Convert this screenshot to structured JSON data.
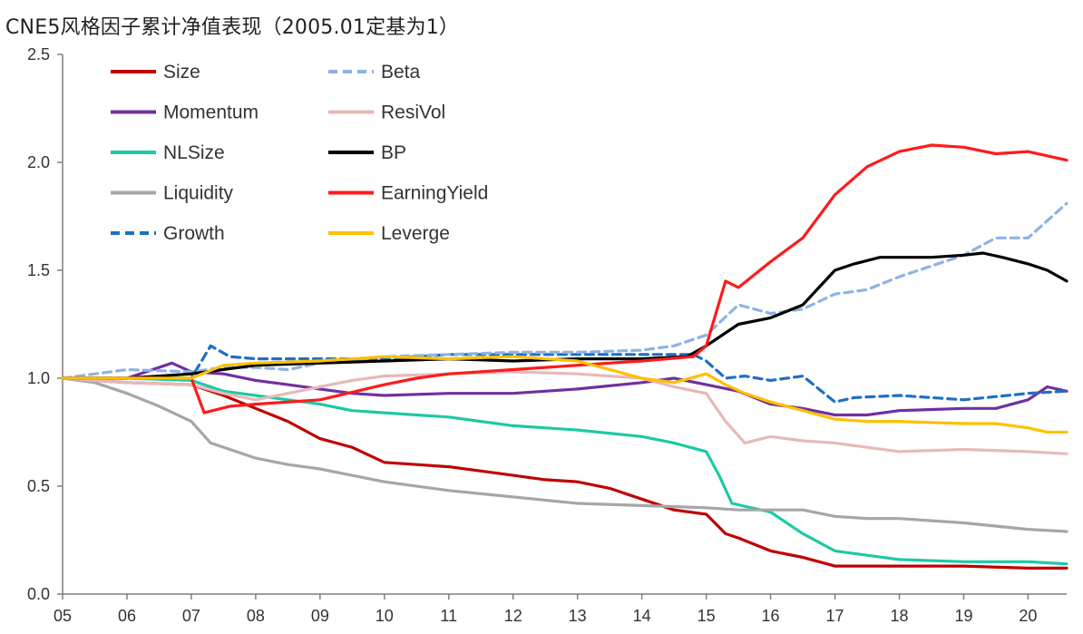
{
  "chart_data": {
    "type": "line",
    "title": "CNE5风格因子累计净值表现（2005.01定基为1）",
    "xlabel": "",
    "ylabel": "",
    "xlim": [
      2005,
      2020.6
    ],
    "ylim": [
      0,
      2.5
    ],
    "yticks": [
      0.0,
      0.5,
      1.0,
      1.5,
      2.0,
      2.5
    ],
    "ytick_labels": [
      "0.0",
      "0.5",
      "1.0",
      "1.5",
      "2.0",
      "2.5"
    ],
    "xticks": [
      2005,
      2006,
      2007,
      2008,
      2009,
      2010,
      2011,
      2012,
      2013,
      2014,
      2015,
      2016,
      2017,
      2018,
      2019,
      2020
    ],
    "xtick_labels": [
      "05",
      "06",
      "07",
      "08",
      "09",
      "10",
      "11",
      "12",
      "13",
      "14",
      "15",
      "16",
      "17",
      "18",
      "19",
      "20"
    ],
    "grid": false,
    "legend_position": "top-left",
    "series": [
      {
        "name": "Size",
        "color": "#c00000",
        "dash": false,
        "x": [
          2005,
          2006,
          2007,
          2007.5,
          2008,
          2008.5,
          2009,
          2009.5,
          2010,
          2010.5,
          2011,
          2011.5,
          2012,
          2012.5,
          2013,
          2013.5,
          2014,
          2014.5,
          2015,
          2015.3,
          2015.5,
          2016,
          2016.5,
          2017,
          2017.5,
          2018,
          2019,
          2020,
          2020.6
        ],
        "y": [
          1.0,
          0.98,
          0.97,
          0.92,
          0.86,
          0.8,
          0.72,
          0.68,
          0.61,
          0.6,
          0.59,
          0.57,
          0.55,
          0.53,
          0.52,
          0.49,
          0.44,
          0.39,
          0.37,
          0.28,
          0.26,
          0.2,
          0.17,
          0.13,
          0.13,
          0.13,
          0.13,
          0.12,
          0.12
        ]
      },
      {
        "name": "Momentum",
        "color": "#7030a0",
        "dash": false,
        "x": [
          2005,
          2006,
          2006.7,
          2007,
          2007.5,
          2008,
          2008.5,
          2009,
          2009.5,
          2010,
          2011,
          2012,
          2013,
          2014,
          2014.5,
          2015,
          2015.5,
          2016,
          2016.5,
          2017,
          2017.5,
          2018,
          2019,
          2019.5,
          2020,
          2020.3,
          2020.6
        ],
        "y": [
          1.0,
          1.0,
          1.07,
          1.03,
          1.02,
          0.99,
          0.97,
          0.95,
          0.93,
          0.92,
          0.93,
          0.93,
          0.95,
          0.98,
          1.0,
          0.97,
          0.94,
          0.88,
          0.86,
          0.83,
          0.83,
          0.85,
          0.86,
          0.86,
          0.9,
          0.96,
          0.94
        ]
      },
      {
        "name": "NLSize",
        "color": "#1dc9a4",
        "dash": false,
        "x": [
          2005,
          2006,
          2007,
          2007.5,
          2008,
          2008.5,
          2009,
          2009.5,
          2010,
          2010.5,
          2011,
          2012,
          2013,
          2014,
          2014.5,
          2015,
          2015.2,
          2015.4,
          2016,
          2016.5,
          2017,
          2018,
          2019,
          2020,
          2020.6
        ],
        "y": [
          1.0,
          1.0,
          0.99,
          0.94,
          0.92,
          0.9,
          0.88,
          0.85,
          0.84,
          0.83,
          0.82,
          0.78,
          0.76,
          0.73,
          0.7,
          0.66,
          0.55,
          0.42,
          0.38,
          0.28,
          0.2,
          0.16,
          0.15,
          0.15,
          0.14
        ]
      },
      {
        "name": "Liquidity",
        "color": "#a6a6a6",
        "dash": false,
        "x": [
          2005,
          2005.5,
          2006,
          2006.5,
          2007,
          2007.3,
          2007.6,
          2008,
          2008.5,
          2009,
          2010,
          2011,
          2012,
          2013,
          2014,
          2015,
          2015.5,
          2016,
          2016.5,
          2017,
          2017.5,
          2018,
          2019,
          2020,
          2020.6
        ],
        "y": [
          1.0,
          0.98,
          0.93,
          0.87,
          0.8,
          0.7,
          0.67,
          0.63,
          0.6,
          0.58,
          0.52,
          0.48,
          0.45,
          0.42,
          0.41,
          0.4,
          0.39,
          0.39,
          0.39,
          0.36,
          0.35,
          0.35,
          0.33,
          0.3,
          0.29
        ]
      },
      {
        "name": "Growth",
        "color": "#1f6fc5",
        "dash": true,
        "x": [
          2005,
          2006,
          2007,
          2007.3,
          2007.6,
          2008,
          2009,
          2010,
          2011,
          2012,
          2013,
          2014,
          2014.8,
          2015,
          2015.3,
          2015.6,
          2016,
          2016.5,
          2017,
          2017.3,
          2018,
          2019,
          2020,
          2020.6
        ],
        "y": [
          1.0,
          1.0,
          1.0,
          1.15,
          1.1,
          1.09,
          1.09,
          1.09,
          1.11,
          1.11,
          1.11,
          1.11,
          1.11,
          1.08,
          1.0,
          1.01,
          0.99,
          1.01,
          0.89,
          0.91,
          0.92,
          0.9,
          0.93,
          0.94
        ]
      },
      {
        "name": "Beta",
        "color": "#8db3e2",
        "dash": true,
        "x": [
          2005,
          2006,
          2007,
          2007.5,
          2008,
          2008.5,
          2009,
          2010,
          2011,
          2012,
          2013,
          2014,
          2014.5,
          2015,
          2015.5,
          2016,
          2016.5,
          2017,
          2017.5,
          2018,
          2018.5,
          2019,
          2019.5,
          2020,
          2020.6
        ],
        "y": [
          1.0,
          1.04,
          1.03,
          1.05,
          1.05,
          1.04,
          1.07,
          1.1,
          1.11,
          1.12,
          1.12,
          1.13,
          1.15,
          1.2,
          1.34,
          1.3,
          1.32,
          1.39,
          1.41,
          1.47,
          1.52,
          1.57,
          1.65,
          1.65,
          1.81
        ]
      },
      {
        "name": "ResiVol",
        "color": "#e6b9b8",
        "dash": false,
        "x": [
          2005,
          2006,
          2007,
          2007.5,
          2008,
          2008.5,
          2009,
          2009.5,
          2010,
          2011,
          2012,
          2013,
          2014,
          2014.5,
          2015,
          2015.3,
          2015.6,
          2016,
          2016.5,
          2017,
          2017.5,
          2018,
          2019,
          2020,
          2020.6
        ],
        "y": [
          1.0,
          0.98,
          0.97,
          0.93,
          0.9,
          0.93,
          0.96,
          0.99,
          1.01,
          1.02,
          1.03,
          1.02,
          1.0,
          0.96,
          0.93,
          0.8,
          0.7,
          0.73,
          0.71,
          0.7,
          0.68,
          0.66,
          0.67,
          0.66,
          0.65
        ]
      },
      {
        "name": "BP",
        "color": "#000000",
        "dash": false,
        "x": [
          2005,
          2006,
          2007,
          2008,
          2009,
          2010,
          2011,
          2012,
          2013,
          2014,
          2014.7,
          2015,
          2015.3,
          2015.5,
          2016,
          2016.5,
          2017,
          2017.3,
          2017.7,
          2018,
          2018.5,
          2019,
          2019.3,
          2019.6,
          2020,
          2020.3,
          2020.6
        ],
        "y": [
          1.0,
          1.0,
          1.02,
          1.06,
          1.07,
          1.08,
          1.09,
          1.08,
          1.09,
          1.09,
          1.1,
          1.15,
          1.21,
          1.25,
          1.28,
          1.34,
          1.5,
          1.53,
          1.56,
          1.56,
          1.56,
          1.57,
          1.58,
          1.56,
          1.53,
          1.5,
          1.45
        ]
      },
      {
        "name": "EarningYield",
        "color": "#ff1a1a",
        "dash": false,
        "x": [
          2005,
          2006,
          2007,
          2007.2,
          2007.6,
          2008,
          2009,
          2010,
          2010.5,
          2011,
          2012,
          2013,
          2014,
          2014.8,
          2015,
          2015.3,
          2015.5,
          2016,
          2016.5,
          2017,
          2017.5,
          2018,
          2018.5,
          2019,
          2019.5,
          2020,
          2020.6
        ],
        "y": [
          1.0,
          1.0,
          1.0,
          0.84,
          0.87,
          0.88,
          0.9,
          0.97,
          1.0,
          1.02,
          1.04,
          1.06,
          1.08,
          1.1,
          1.15,
          1.45,
          1.42,
          1.54,
          1.65,
          1.85,
          1.98,
          2.05,
          2.08,
          2.07,
          2.04,
          2.05,
          2.01
        ]
      },
      {
        "name": "Leverge",
        "color": "#ffc000",
        "dash": false,
        "x": [
          2005,
          2006,
          2007,
          2007.5,
          2008,
          2009,
          2010,
          2011,
          2012,
          2013,
          2013.5,
          2014,
          2014.5,
          2015,
          2015.3,
          2015.6,
          2016,
          2016.5,
          2017,
          2017.5,
          2018,
          2019,
          2019.5,
          2020,
          2020.3,
          2020.6
        ],
        "y": [
          1.0,
          1.0,
          1.0,
          1.06,
          1.07,
          1.08,
          1.1,
          1.09,
          1.1,
          1.08,
          1.04,
          1.0,
          0.98,
          1.02,
          0.97,
          0.93,
          0.89,
          0.85,
          0.81,
          0.8,
          0.8,
          0.79,
          0.79,
          0.77,
          0.75,
          0.75
        ]
      }
    ]
  }
}
